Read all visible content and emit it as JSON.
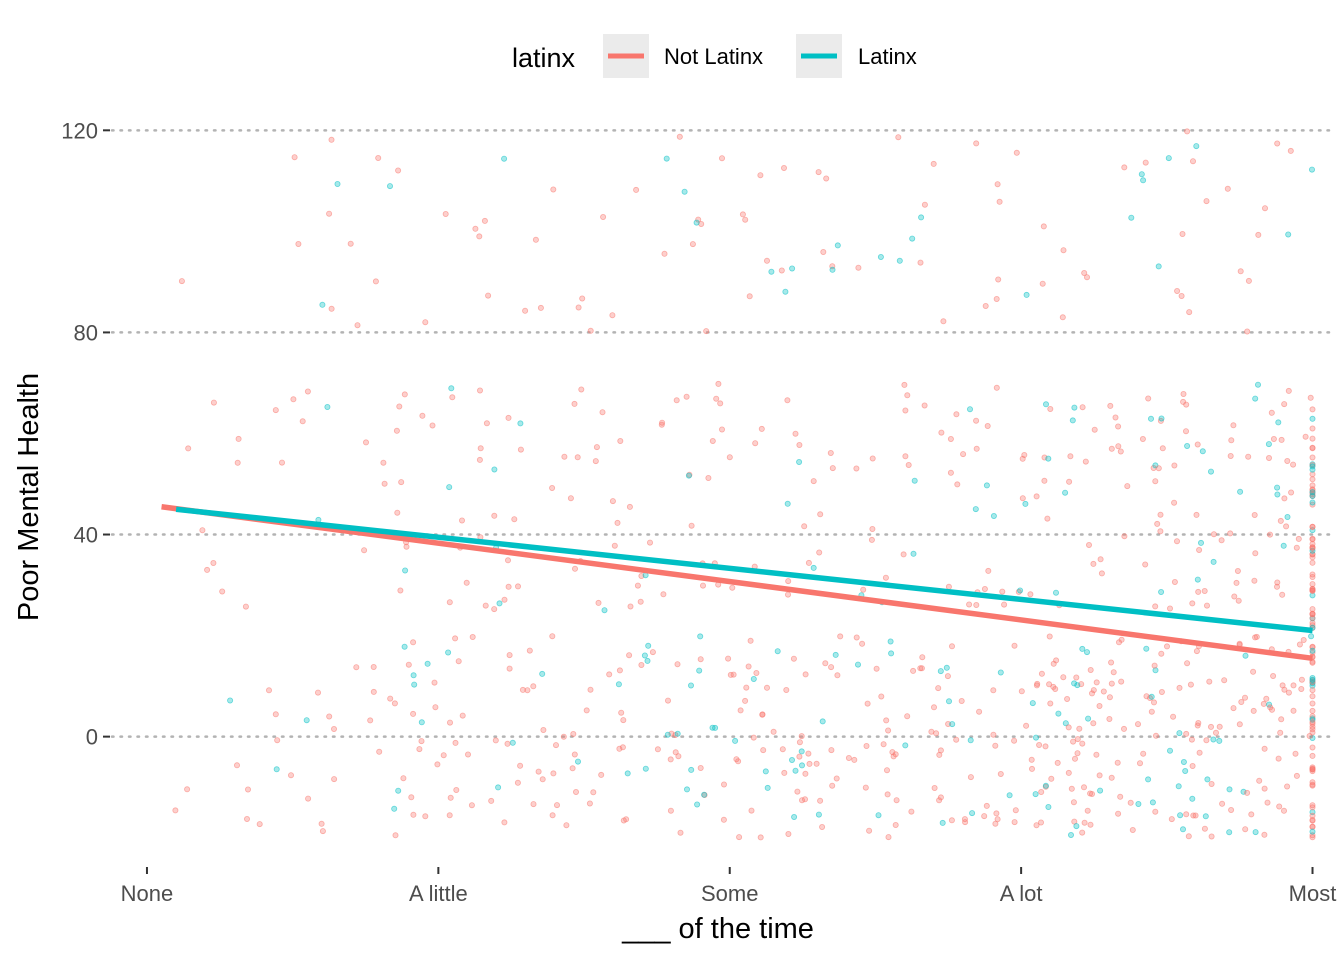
{
  "chart_data": {
    "type": "scatter",
    "xlabel": "___ of the time",
    "ylabel": "Poor Mental Health",
    "x_categories": [
      "None",
      "A little",
      "Some",
      "A lot",
      "Most"
    ],
    "y_ticks": [
      0,
      40,
      80,
      120
    ],
    "ylim": [
      -26,
      126
    ],
    "xlim": [
      -0.12,
      4.06
    ],
    "grid": "horizontal dotted major lines",
    "legend": {
      "title": "latinx",
      "placement": "top",
      "entries": [
        "Not Latinx",
        "Latinx"
      ]
    },
    "series": [
      {
        "name": "Not Latinx",
        "color": "#F8766D",
        "trend": {
          "x": [
            0.05,
            4.0
          ],
          "y": [
            45.5,
            15.5
          ]
        }
      },
      {
        "name": "Latinx",
        "color": "#00BFC4",
        "trend": {
          "x": [
            0.1,
            4.0
          ],
          "y": [
            45.0,
            21.0
          ]
        }
      }
    ],
    "point_opacity": 0.35
  }
}
